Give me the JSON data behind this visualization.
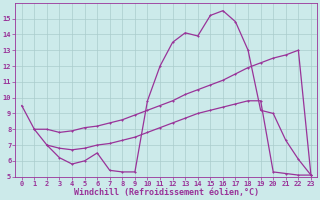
{
  "bg_color": "#cceaea",
  "grid_color": "#aacccc",
  "line_color": "#993399",
  "xlabel": "Windchill (Refroidissement éolien,°C)",
  "xlabel_fontsize": 6.0,
  "xlim": [
    -0.5,
    23.5
  ],
  "ylim": [
    5,
    16
  ],
  "yticks": [
    5,
    6,
    7,
    8,
    9,
    10,
    11,
    12,
    13,
    14,
    15
  ],
  "xticks": [
    0,
    1,
    2,
    3,
    4,
    5,
    6,
    7,
    8,
    9,
    10,
    11,
    12,
    13,
    14,
    15,
    16,
    17,
    18,
    19,
    20,
    21,
    22,
    23
  ],
  "line1_x": [
    0,
    1,
    2,
    3,
    4,
    5,
    6,
    7,
    8,
    9,
    10,
    11,
    12,
    13,
    14,
    15,
    16,
    17,
    18,
    19,
    20,
    21,
    22,
    23
  ],
  "line1_y": [
    9.5,
    8.0,
    7.0,
    6.2,
    5.8,
    6.0,
    6.5,
    5.4,
    5.3,
    5.3,
    9.8,
    12.0,
    13.5,
    14.1,
    13.9,
    15.2,
    15.5,
    14.8,
    13.0,
    9.2,
    9.0,
    7.3,
    6.1,
    5.1
  ],
  "line2_x": [
    1,
    2,
    3,
    4,
    5,
    6,
    7,
    8,
    9,
    10,
    11,
    12,
    13,
    14,
    15,
    16,
    17,
    18,
    19,
    20,
    21,
    22,
    23
  ],
  "line2_y": [
    8.0,
    8.0,
    7.8,
    7.9,
    8.1,
    8.2,
    8.4,
    8.6,
    8.9,
    9.2,
    9.5,
    9.8,
    10.2,
    10.5,
    10.8,
    11.1,
    11.5,
    11.9,
    12.2,
    12.5,
    12.7,
    13.0,
    5.1
  ],
  "line3_x": [
    2,
    3,
    4,
    5,
    6,
    7,
    8,
    9,
    10,
    11,
    12,
    13,
    14,
    15,
    16,
    17,
    18,
    19,
    20,
    21,
    22,
    23
  ],
  "line3_y": [
    7.0,
    6.8,
    6.7,
    6.8,
    7.0,
    7.1,
    7.3,
    7.5,
    7.8,
    8.1,
    8.4,
    8.7,
    9.0,
    9.2,
    9.4,
    9.6,
    9.8,
    9.8,
    5.3,
    5.2,
    5.1,
    5.1
  ]
}
